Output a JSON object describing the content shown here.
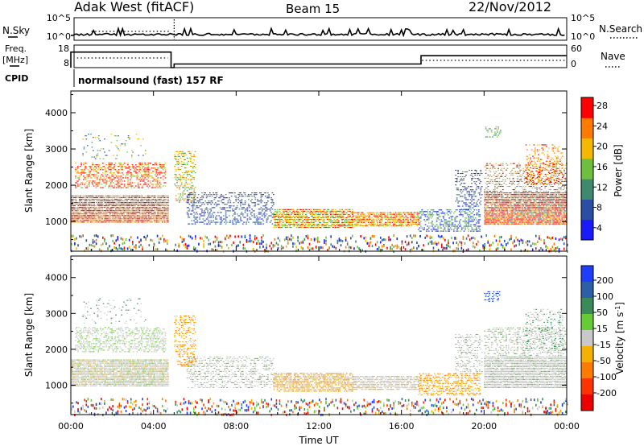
{
  "header": {
    "radar_title": "Adak West (fitACF)",
    "beam_title": "Beam 15",
    "date_title": "22/Nov/2012"
  },
  "top_panels": {
    "nsky_label": "N.Sky",
    "nsky_ticks": [
      "10^5",
      "10^0"
    ],
    "nsearch_label": "N.Search",
    "nsearch_ticks": [
      "10^5",
      "10^0"
    ],
    "freq_label": "Freq.",
    "freq_unit": "[MHz]",
    "freq_ticks": [
      "18",
      "8"
    ],
    "nave_label": "Nave",
    "nave_ticks": [
      "60",
      "0"
    ],
    "cpid_label": "CPID",
    "cpid_text": "normalsound (fast) 157 RF"
  },
  "chart_data": [
    {
      "type": "heatmap",
      "name": "power-panel",
      "ylabel": "Slant Range [km]",
      "yticks": [
        "1000",
        "2000",
        "3000",
        "4000"
      ],
      "ylim": [
        180,
        4600
      ],
      "xlim": [
        0,
        24
      ],
      "colorbar": {
        "label": "Power [dB]",
        "ticks": [
          "4",
          "8",
          "12",
          "16",
          "20",
          "24",
          "28"
        ],
        "colors": [
          "#1a1aff",
          "#2a4ea6",
          "#3d8a6e",
          "#6fbf3f",
          "#f5b800",
          "#ff7a00",
          "#ff0000"
        ]
      }
    },
    {
      "type": "heatmap",
      "name": "velocity-panel",
      "ylabel": "Slant Range [km]",
      "yticks": [
        "1000",
        "2000",
        "3000",
        "4000"
      ],
      "ylim": [
        180,
        4600
      ],
      "xlim": [
        0,
        24
      ],
      "xlabel": "Time UT",
      "xticks": [
        "00:00",
        "04:00",
        "08:00",
        "12:00",
        "16:00",
        "20:00",
        "00:00"
      ],
      "colorbar": {
        "label": "Velocity [m s",
        "label_sup": "-1",
        "label_close": "]",
        "ticks": [
          "200",
          "100",
          "50",
          "15",
          "-15",
          "-50",
          "-100",
          "-200"
        ],
        "colors": [
          "#1e3dff",
          "#2d5fa8",
          "#3b8a5a",
          "#66cc33",
          "#c8c8c8",
          "#f5b000",
          "#ff7a00",
          "#ff3300",
          "#ee0000"
        ]
      }
    }
  ]
}
